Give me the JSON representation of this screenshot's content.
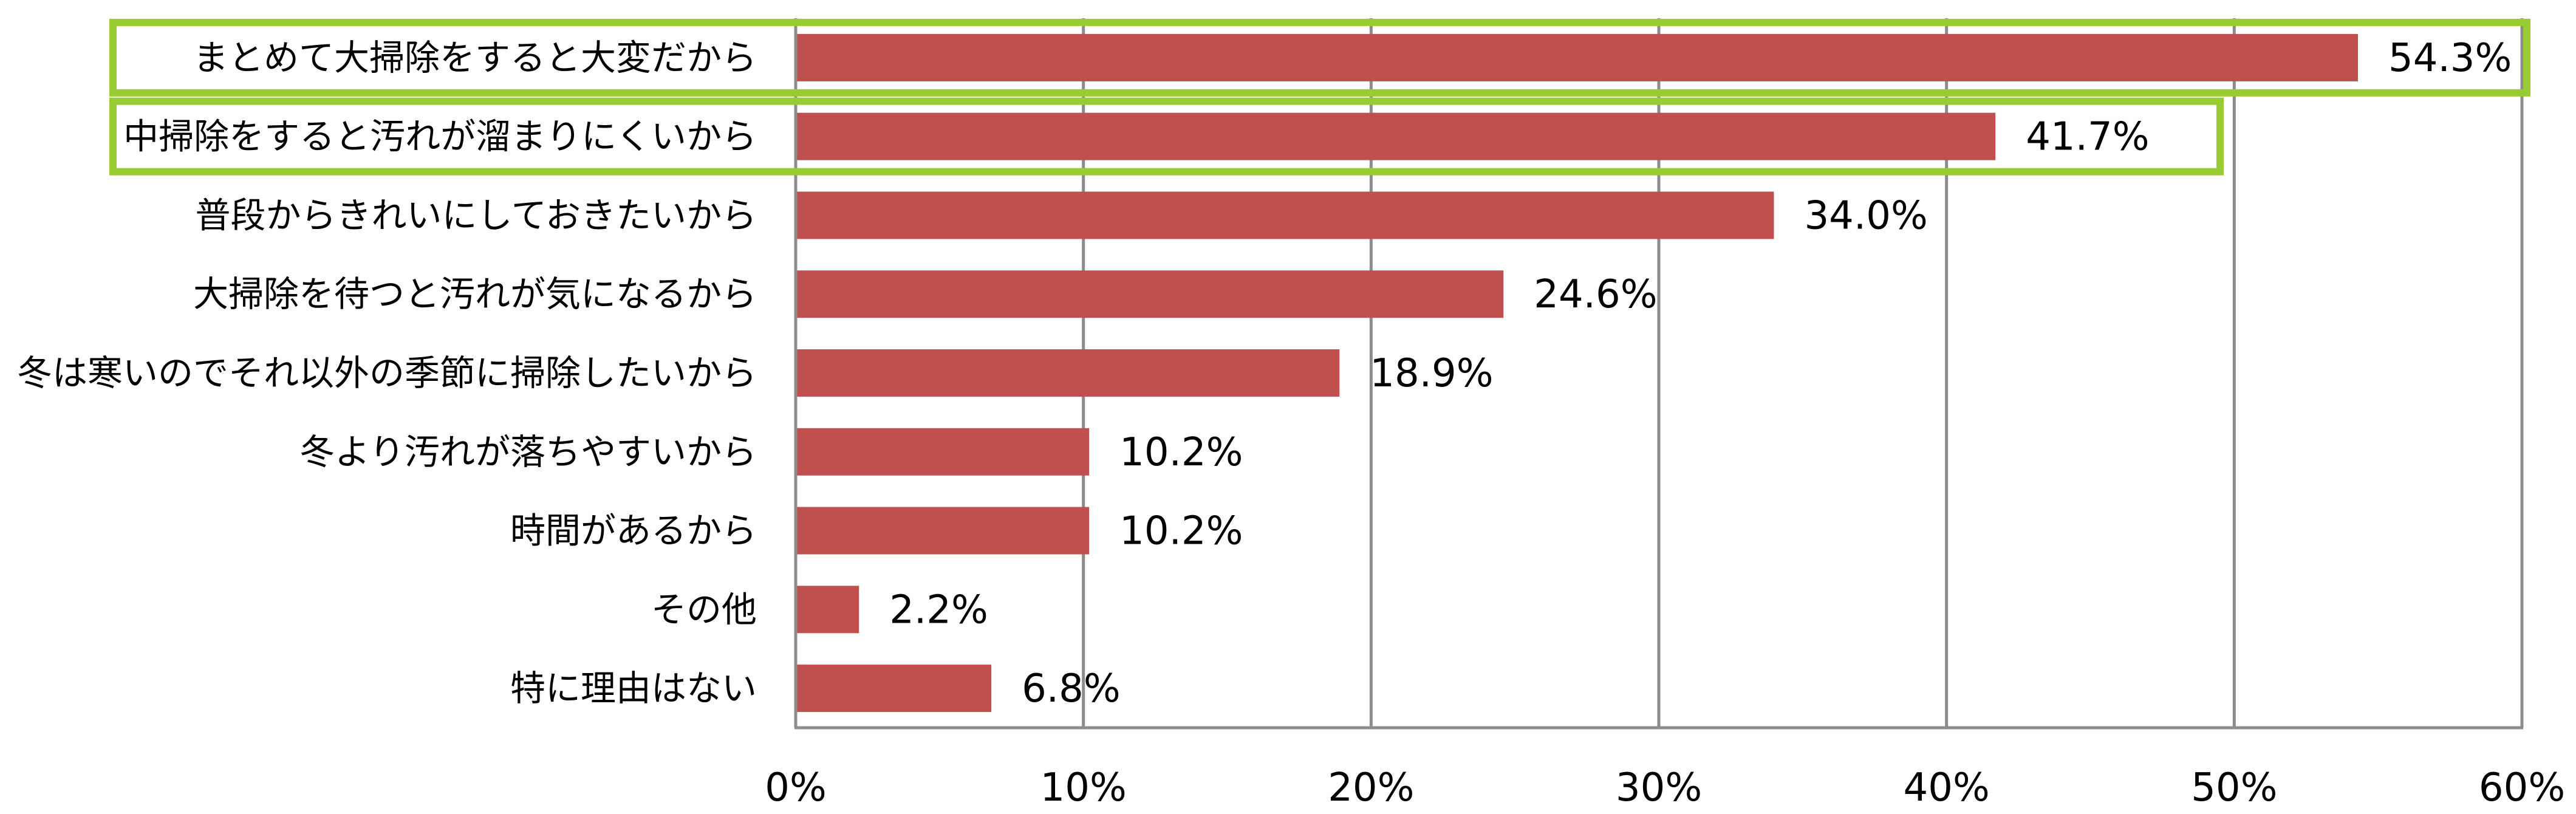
{
  "chart_data": {
    "type": "bar",
    "orientation": "horizontal",
    "categories": [
      "まとめて大掃除をすると大変だから",
      "中掃除をすると汚れが溜まりにくいから",
      "普段からきれいにしておきたいから",
      "大掃除を待つと汚れが気になるから",
      "冬は寒いのでそれ以外の季節に掃除したいから",
      "冬より汚れが落ちやすいから",
      "時間があるから",
      "その他",
      "特に理由はない"
    ],
    "values": [
      54.3,
      41.7,
      34.0,
      24.6,
      18.9,
      10.2,
      10.2,
      2.2,
      6.8
    ],
    "value_labels": [
      "54.3%",
      "41.7%",
      "34.0%",
      "24.6%",
      "18.9%",
      "10.2%",
      "10.2%",
      "2.2%",
      "6.8%"
    ],
    "x_ticks": [
      "0%",
      "10%",
      "20%",
      "30%",
      "40%",
      "50%",
      "60%"
    ],
    "xlim": [
      0,
      60
    ],
    "grid": "vertical",
    "highlighted_categories": [
      0,
      1
    ],
    "bar_color": "#C0504D",
    "grid_color": "#8C8C8C",
    "highlight_color": "#99CC33"
  }
}
